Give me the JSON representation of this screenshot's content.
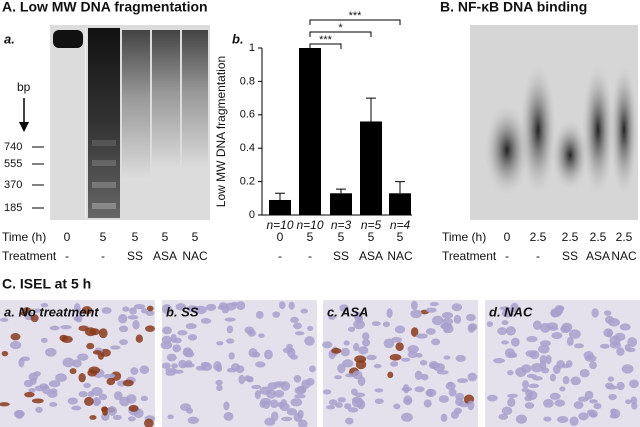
{
  "panel_a": {
    "title": "A. Low MW DNA fragmentation",
    "gel_label": "a.",
    "bp_label": "bp",
    "markers": [
      "740",
      "555",
      "370",
      "185"
    ],
    "row_labels": [
      "Time (h)",
      "Treatment"
    ],
    "time": [
      "0",
      "5",
      "5",
      "5",
      "5"
    ],
    "treatment": [
      "-",
      "-",
      "SS",
      "ASA",
      "NAC"
    ]
  },
  "chart_data": {
    "type": "bar",
    "panel_label": "b.",
    "y_label": "Low MW DNA fragmentation",
    "categories": [
      "-",
      "-",
      "SS",
      "ASA",
      "NAC"
    ],
    "time_labels": [
      "0",
      "5",
      "5",
      "5",
      "5"
    ],
    "n_labels": [
      "n=10",
      "n=10",
      "n=3",
      "n=5",
      "n=4"
    ],
    "values": [
      0.09,
      1.0,
      0.13,
      0.56,
      0.13
    ],
    "errors": [
      0.04,
      0,
      0.025,
      0.14,
      0.07
    ],
    "color": "#000000",
    "ylim": [
      0,
      1
    ],
    "yticks": [
      0,
      0.2,
      0.4,
      0.6,
      0.8,
      1
    ],
    "significance": [
      "***",
      "*",
      "***"
    ]
  },
  "panel_b": {
    "title": "B. NF-κB DNA binding",
    "row_labels": [
      "Time (h)",
      "Treatment"
    ],
    "time": [
      "0",
      "2.5",
      "2.5",
      "2.5",
      "2.5"
    ],
    "treatment": [
      "-",
      "-",
      "SS",
      "ASA",
      "NAC"
    ]
  },
  "panel_c": {
    "title": "C. ISEL at 5 h",
    "images": [
      "a. No treatment",
      "b. SS",
      "c. ASA",
      "d. NAC"
    ]
  }
}
